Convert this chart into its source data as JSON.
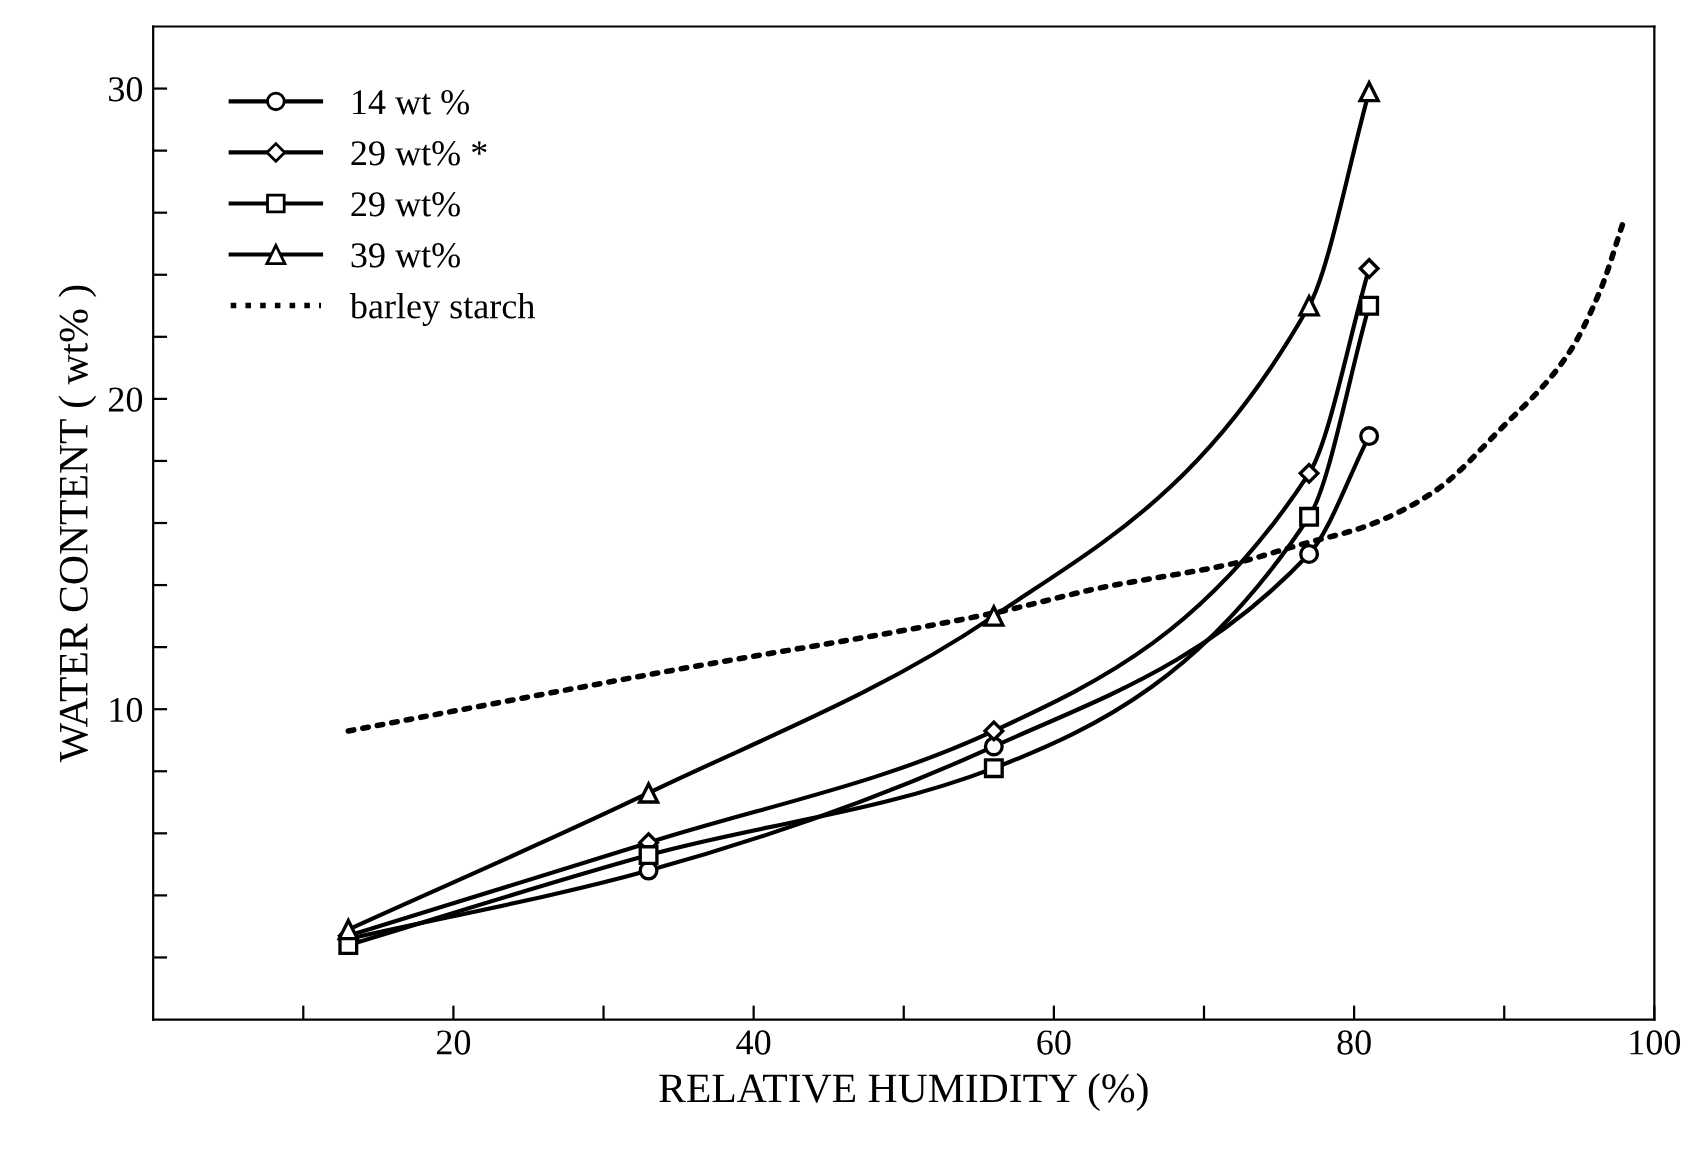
{
  "chart_data": {
    "type": "line",
    "xlabel": "RELATIVE HUMIDITY (%)",
    "ylabel": "WATER CONTENT ( wt% )",
    "xlim": [
      0,
      100
    ],
    "xticks": [
      {
        "value": 10,
        "label": null
      },
      20,
      {
        "value": 30,
        "label": null
      },
      40,
      {
        "value": 50,
        "label": null
      },
      60,
      {
        "value": 70,
        "label": null
      },
      80,
      {
        "value": 90,
        "label": null
      },
      100
    ],
    "ylim": [
      0,
      32
    ],
    "yticks": [
      {
        "value": 2,
        "label": null
      },
      {
        "value": 4,
        "label": null
      },
      {
        "value": 6,
        "label": null
      },
      {
        "value": 8,
        "label": null
      },
      10,
      {
        "value": 12,
        "label": null
      },
      {
        "value": 14,
        "label": null
      },
      {
        "value": 16,
        "label": null
      },
      {
        "value": 18,
        "label": null
      },
      20,
      {
        "value": 22,
        "label": null
      },
      {
        "value": 24,
        "label": null
      },
      {
        "value": 26,
        "label": null
      },
      {
        "value": 28,
        "label": null
      },
      30
    ],
    "grid": false,
    "legend": "top left",
    "series": [
      {
        "name": "14 wt %",
        "color": "#000000",
        "marker": "circle",
        "line_style": "solid",
        "x": [
          13,
          33,
          56,
          77,
          81
        ],
        "values": [
          2.6,
          4.8,
          8.8,
          15.0,
          18.8
        ]
      },
      {
        "name": "29 wt% *",
        "color": "#000000",
        "marker": "diamond",
        "line_style": "solid",
        "x": [
          13,
          33,
          56,
          77,
          81
        ],
        "values": [
          2.7,
          5.7,
          9.3,
          17.6,
          24.2
        ]
      },
      {
        "name": "29 wt%",
        "color": "#000000",
        "marker": "square",
        "line_style": "solid",
        "x": [
          13,
          33,
          56,
          77,
          81
        ],
        "values": [
          2.4,
          5.3,
          8.1,
          16.2,
          23.0
        ]
      },
      {
        "name": "39 wt%",
        "color": "#000000",
        "marker": "triangle",
        "line_style": "solid",
        "x": [
          13,
          33,
          56,
          77,
          81
        ],
        "values": [
          2.9,
          7.3,
          13.0,
          23.0,
          29.9
        ]
      },
      {
        "name": "barley starch",
        "color": "#000000",
        "marker": "none",
        "line_style": "dotted",
        "x": [
          13,
          34,
          56,
          63,
          72,
          76.4,
          80.8,
          85.3,
          89.7,
          94.2,
          96.4,
          98
        ],
        "values": [
          9.3,
          11.2,
          13.1,
          13.9,
          14.7,
          15.3,
          15.9,
          17.0,
          19.0,
          21.4,
          23.5,
          25.8
        ]
      }
    ]
  }
}
